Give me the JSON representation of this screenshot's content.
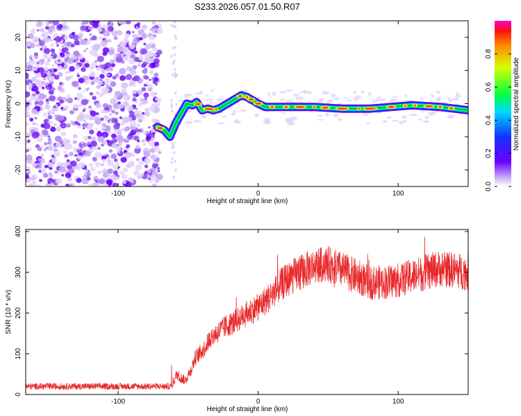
{
  "figure": {
    "title": "S233.2026.057.01.50.R07"
  },
  "chart_data": [
    {
      "type": "heatmap",
      "name": "spectrogram",
      "xlabel": "Height of straight line (km)",
      "ylabel": "Frequency (Hz)",
      "xlim": [
        -166,
        150
      ],
      "ylim": [
        -25,
        25
      ],
      "xticks": [
        -100,
        0,
        100
      ],
      "xtick_labels": [
        "-100",
        "0",
        "100"
      ],
      "yticks": [
        -20,
        -10,
        0,
        10,
        20
      ],
      "ytick_labels": [
        "-20",
        "-10",
        "0",
        "10",
        "20"
      ],
      "noise_region_x": [
        -166,
        -70
      ],
      "signal_track": {
        "x": [
          -72,
          -67,
          -63,
          -59,
          -55,
          -51,
          -47,
          -44,
          -40,
          -36,
          -32,
          -28,
          -24,
          -20,
          -16,
          -12,
          -8,
          -4,
          0,
          5,
          20,
          40,
          60,
          80,
          95,
          110,
          130,
          150
        ],
        "freq": [
          -7,
          -8,
          -10,
          -6,
          -3,
          0,
          -0.5,
          0.5,
          -2,
          -1.5,
          -2,
          -1.5,
          -0.5,
          0.5,
          1.5,
          2.5,
          2,
          1,
          0,
          -1,
          -1,
          -1,
          -1.5,
          -1.5,
          -1,
          -0.5,
          -1,
          -2
        ]
      },
      "colorbar": {
        "label": "Normalized spectral amplitude",
        "range": [
          0,
          1
        ],
        "ticks": [
          0.0,
          0.2,
          0.4,
          0.6,
          0.8
        ],
        "tick_labels": [
          "0.0",
          "0.2",
          "0.4",
          "0.6",
          "0.8"
        ]
      }
    },
    {
      "type": "line",
      "name": "snr",
      "xlabel": "Height of straight line (km)",
      "ylabel": "SNR (10 * v/v)",
      "xlim": [
        -166,
        150
      ],
      "ylim": [
        0,
        405
      ],
      "xticks": [
        -100,
        0,
        100
      ],
      "xtick_labels": [
        "-100",
        "0",
        "100"
      ],
      "yticks": [
        0,
        100,
        200,
        300,
        400
      ],
      "ytick_labels": [
        "0",
        "100",
        "200",
        "300",
        "400"
      ],
      "color": "#e8282b",
      "trend": {
        "x": [
          -166,
          -62,
          -58,
          -55,
          -52,
          -48,
          -45,
          -42,
          -38,
          -34,
          -30,
          -26,
          -22,
          -18,
          -14,
          -10,
          -5,
          0,
          5,
          10,
          15,
          20,
          25,
          30,
          40,
          50,
          60,
          70,
          80,
          90,
          100,
          110,
          120,
          130,
          140,
          150
        ],
        "y": [
          20,
          20,
          50,
          40,
          35,
          60,
          90,
          100,
          115,
          140,
          150,
          160,
          170,
          175,
          185,
          195,
          205,
          215,
          230,
          245,
          265,
          280,
          290,
          300,
          315,
          320,
          305,
          290,
          275,
          275,
          280,
          290,
          300,
          310,
          305,
          300
        ]
      },
      "noise_amplitude": [
        8,
        45
      ],
      "notes": "dense noisy trace; baseline ~20 before -62 km, rising to ~300 after 30 km"
    }
  ]
}
